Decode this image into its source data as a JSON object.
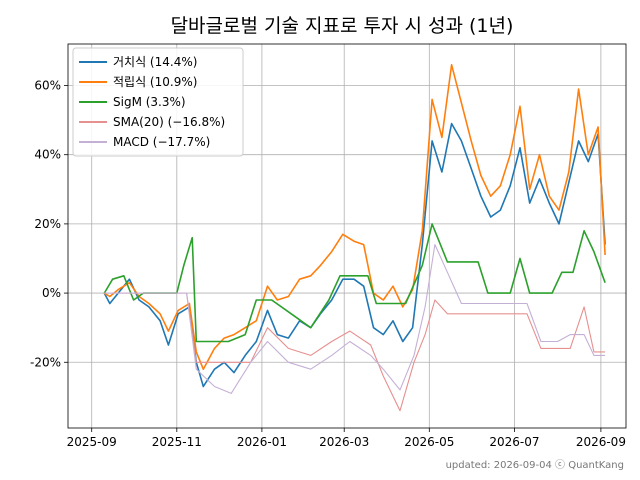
{
  "chart_data": {
    "type": "line",
    "title": "달바글로벌 기술 지표로 투자 시 성과 (1년)",
    "xlabel": "",
    "ylabel": "",
    "x_ticks": [
      "2025-09",
      "2025-11",
      "2026-01",
      "2026-03",
      "2026-05",
      "2026-07",
      "2026-09"
    ],
    "y_ticks": [
      "-20%",
      "0%",
      "20%",
      "40%",
      "60%"
    ],
    "ylim": [
      -39,
      72
    ],
    "grid": true,
    "legend_position": "top-left",
    "footer": "updated: 2026-09-04 ⓒ QuantKang",
    "series": [
      {
        "name": "거치식 (14.4%)",
        "color": "#1f77b4",
        "points": [
          [
            "2025-09-10",
            0
          ],
          [
            "2025-09-14",
            -3
          ],
          [
            "2025-09-20",
            0
          ],
          [
            "2025-09-28",
            4
          ],
          [
            "2025-10-05",
            -2
          ],
          [
            "2025-10-12",
            -4
          ],
          [
            "2025-10-20",
            -8
          ],
          [
            "2025-10-26",
            -15
          ],
          [
            "2025-11-02",
            -6
          ],
          [
            "2025-11-10",
            -4
          ],
          [
            "2025-11-15",
            -20
          ],
          [
            "2025-11-20",
            -27
          ],
          [
            "2025-11-28",
            -22
          ],
          [
            "2025-12-05",
            -20
          ],
          [
            "2025-12-12",
            -23
          ],
          [
            "2025-12-20",
            -18
          ],
          [
            "2025-12-28",
            -14
          ],
          [
            "2026-01-05",
            -5
          ],
          [
            "2026-01-12",
            -12
          ],
          [
            "2026-01-20",
            -13
          ],
          [
            "2026-01-28",
            -8
          ],
          [
            "2026-02-05",
            -10
          ],
          [
            "2026-02-12",
            -6
          ],
          [
            "2026-02-20",
            -2
          ],
          [
            "2026-02-28",
            4
          ],
          [
            "2026-03-08",
            4
          ],
          [
            "2026-03-15",
            2
          ],
          [
            "2026-03-22",
            -10
          ],
          [
            "2026-03-29",
            -12
          ],
          [
            "2026-04-05",
            -8
          ],
          [
            "2026-04-12",
            -14
          ],
          [
            "2026-04-19",
            -10
          ],
          [
            "2026-04-26",
            14
          ],
          [
            "2026-05-03",
            44
          ],
          [
            "2026-05-10",
            35
          ],
          [
            "2026-05-17",
            49
          ],
          [
            "2026-05-24",
            44
          ],
          [
            "2026-05-31",
            36
          ],
          [
            "2026-06-07",
            28
          ],
          [
            "2026-06-14",
            22
          ],
          [
            "2026-06-21",
            24
          ],
          [
            "2026-06-28",
            31
          ],
          [
            "2026-07-05",
            42
          ],
          [
            "2026-07-12",
            26
          ],
          [
            "2026-07-19",
            33
          ],
          [
            "2026-07-26",
            26
          ],
          [
            "2026-08-02",
            20
          ],
          [
            "2026-08-09",
            32
          ],
          [
            "2026-08-16",
            44
          ],
          [
            "2026-08-23",
            38
          ],
          [
            "2026-08-30",
            46
          ],
          [
            "2026-09-04",
            14
          ]
        ]
      },
      {
        "name": "적립식 (10.9%)",
        "color": "#ff7f0e",
        "points": [
          [
            "2025-09-10",
            0
          ],
          [
            "2025-09-14",
            -1
          ],
          [
            "2025-09-20",
            1
          ],
          [
            "2025-09-28",
            3
          ],
          [
            "2025-10-05",
            -1
          ],
          [
            "2025-10-12",
            -3
          ],
          [
            "2025-10-20",
            -6
          ],
          [
            "2025-10-26",
            -11
          ],
          [
            "2025-11-02",
            -5
          ],
          [
            "2025-11-10",
            -3
          ],
          [
            "2025-11-15",
            -17
          ],
          [
            "2025-11-20",
            -22
          ],
          [
            "2025-11-28",
            -16
          ],
          [
            "2025-12-05",
            -13
          ],
          [
            "2025-12-12",
            -12
          ],
          [
            "2025-12-20",
            -10
          ],
          [
            "2025-12-28",
            -8
          ],
          [
            "2026-01-05",
            2
          ],
          [
            "2026-01-12",
            -2
          ],
          [
            "2026-01-20",
            -1
          ],
          [
            "2026-01-28",
            4
          ],
          [
            "2026-02-05",
            5
          ],
          [
            "2026-02-12",
            8
          ],
          [
            "2026-02-20",
            12
          ],
          [
            "2026-02-28",
            17
          ],
          [
            "2026-03-08",
            15
          ],
          [
            "2026-03-15",
            14
          ],
          [
            "2026-03-22",
            0
          ],
          [
            "2026-03-29",
            -2
          ],
          [
            "2026-04-05",
            2
          ],
          [
            "2026-04-12",
            -4
          ],
          [
            "2026-04-19",
            1
          ],
          [
            "2026-04-26",
            18
          ],
          [
            "2026-05-03",
            56
          ],
          [
            "2026-05-10",
            45
          ],
          [
            "2026-05-17",
            66
          ],
          [
            "2026-05-24",
            55
          ],
          [
            "2026-05-31",
            44
          ],
          [
            "2026-06-07",
            34
          ],
          [
            "2026-06-14",
            28
          ],
          [
            "2026-06-21",
            31
          ],
          [
            "2026-06-28",
            40
          ],
          [
            "2026-07-05",
            54
          ],
          [
            "2026-07-12",
            30
          ],
          [
            "2026-07-19",
            40
          ],
          [
            "2026-07-26",
            28
          ],
          [
            "2026-08-02",
            24
          ],
          [
            "2026-08-09",
            35
          ],
          [
            "2026-08-16",
            59
          ],
          [
            "2026-08-23",
            40
          ],
          [
            "2026-08-30",
            48
          ],
          [
            "2026-09-04",
            11
          ]
        ]
      },
      {
        "name": "SigM (3.3%)",
        "color": "#2ca02c",
        "points": [
          [
            "2025-09-10",
            0
          ],
          [
            "2025-09-16",
            4
          ],
          [
            "2025-09-24",
            5
          ],
          [
            "2025-10-01",
            -2
          ],
          [
            "2025-10-08",
            0
          ],
          [
            "2025-10-20",
            0
          ],
          [
            "2025-11-01",
            0
          ],
          [
            "2025-11-06",
            8
          ],
          [
            "2025-11-12",
            16
          ],
          [
            "2025-11-15",
            -14
          ],
          [
            "2025-11-26",
            -14
          ],
          [
            "2025-12-08",
            -14
          ],
          [
            "2025-12-20",
            -12
          ],
          [
            "2025-12-28",
            -2
          ],
          [
            "2026-01-08",
            -2
          ],
          [
            "2026-01-22",
            -6
          ],
          [
            "2026-02-05",
            -10
          ],
          [
            "2026-02-18",
            -2
          ],
          [
            "2026-02-26",
            5
          ],
          [
            "2026-03-08",
            5
          ],
          [
            "2026-03-18",
            5
          ],
          [
            "2026-03-24",
            -3
          ],
          [
            "2026-04-04",
            -3
          ],
          [
            "2026-04-14",
            -3
          ],
          [
            "2026-04-26",
            8
          ],
          [
            "2026-05-03",
            20
          ],
          [
            "2026-05-14",
            9
          ],
          [
            "2026-05-24",
            9
          ],
          [
            "2026-06-05",
            9
          ],
          [
            "2026-06-12",
            0
          ],
          [
            "2026-06-28",
            0
          ],
          [
            "2026-07-05",
            10
          ],
          [
            "2026-07-12",
            0
          ],
          [
            "2026-07-28",
            0
          ],
          [
            "2026-08-04",
            6
          ],
          [
            "2026-08-12",
            6
          ],
          [
            "2026-08-20",
            18
          ],
          [
            "2026-08-27",
            12
          ],
          [
            "2026-09-04",
            3
          ]
        ]
      },
      {
        "name": "SMA(20) (−16.8%)",
        "color": "#e6908f",
        "points": [
          [
            "2025-09-10",
            0
          ],
          [
            "2025-09-20",
            0
          ],
          [
            "2025-10-05",
            0
          ],
          [
            "2025-10-20",
            0
          ],
          [
            "2025-11-08",
            0
          ],
          [
            "2025-11-15",
            -20
          ],
          [
            "2025-11-28",
            -20
          ],
          [
            "2025-12-10",
            -20
          ],
          [
            "2025-12-24",
            -20
          ],
          [
            "2026-01-05",
            -10
          ],
          [
            "2026-01-20",
            -16
          ],
          [
            "2026-02-05",
            -18
          ],
          [
            "2026-02-20",
            -14
          ],
          [
            "2026-03-05",
            -11
          ],
          [
            "2026-03-20",
            -15
          ],
          [
            "2026-03-29",
            -24
          ],
          [
            "2026-04-10",
            -34
          ],
          [
            "2026-04-20",
            -20
          ],
          [
            "2026-04-28",
            -12
          ],
          [
            "2026-05-05",
            -2
          ],
          [
            "2026-05-14",
            -6
          ],
          [
            "2026-05-24",
            -6
          ],
          [
            "2026-06-10",
            -6
          ],
          [
            "2026-06-28",
            -6
          ],
          [
            "2026-07-10",
            -6
          ],
          [
            "2026-07-20",
            -16
          ],
          [
            "2026-08-01",
            -16
          ],
          [
            "2026-08-10",
            -16
          ],
          [
            "2026-08-20",
            -4
          ],
          [
            "2026-08-27",
            -17
          ],
          [
            "2026-09-04",
            -17
          ]
        ]
      },
      {
        "name": "MACD (−17.7%)",
        "color": "#c5b0d5",
        "points": [
          [
            "2025-09-10",
            0
          ],
          [
            "2025-09-20",
            0
          ],
          [
            "2025-10-05",
            0
          ],
          [
            "2025-10-20",
            0
          ],
          [
            "2025-11-08",
            0
          ],
          [
            "2025-11-15",
            -22
          ],
          [
            "2025-11-28",
            -27
          ],
          [
            "2025-12-10",
            -29
          ],
          [
            "2025-12-24",
            -20
          ],
          [
            "2026-01-05",
            -14
          ],
          [
            "2026-01-20",
            -20
          ],
          [
            "2026-02-05",
            -22
          ],
          [
            "2026-02-20",
            -18
          ],
          [
            "2026-03-05",
            -14
          ],
          [
            "2026-03-20",
            -18
          ],
          [
            "2026-03-29",
            -22
          ],
          [
            "2026-04-10",
            -28
          ],
          [
            "2026-04-20",
            -18
          ],
          [
            "2026-04-28",
            -4
          ],
          [
            "2026-05-05",
            14
          ],
          [
            "2026-05-14",
            6
          ],
          [
            "2026-05-24",
            -3
          ],
          [
            "2026-06-10",
            -3
          ],
          [
            "2026-06-28",
            -3
          ],
          [
            "2026-07-10",
            -3
          ],
          [
            "2026-07-20",
            -14
          ],
          [
            "2026-08-01",
            -14
          ],
          [
            "2026-08-10",
            -12
          ],
          [
            "2026-08-20",
            -12
          ],
          [
            "2026-08-27",
            -18
          ],
          [
            "2026-09-04",
            -18
          ]
        ]
      }
    ]
  }
}
